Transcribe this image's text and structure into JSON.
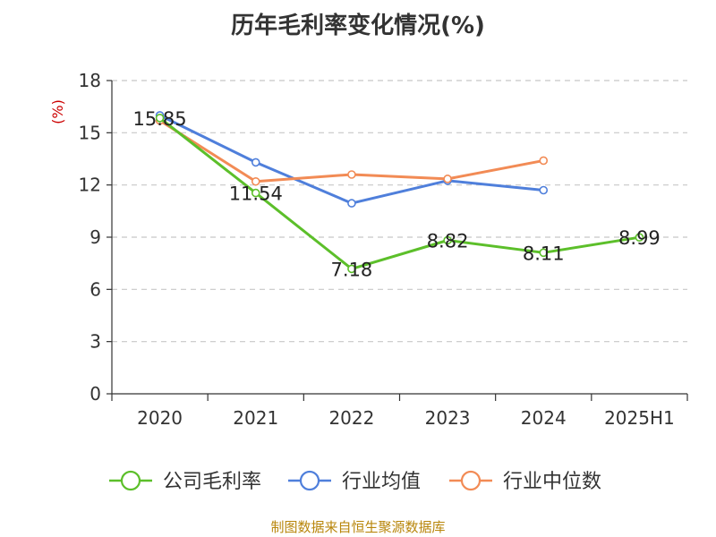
{
  "title": "历年毛利率变化情况(%)",
  "footer": "制图数据来自恒生聚源数据库",
  "chart_data": {
    "type": "line",
    "title": "历年毛利率变化情况(%)",
    "xlabel": "",
    "ylabel": "(%)",
    "categories": [
      "2020",
      "2021",
      "2022",
      "2023",
      "2024",
      "2025H1"
    ],
    "ylim": [
      0,
      18
    ],
    "yticks": [
      0,
      3,
      6,
      9,
      12,
      15,
      18
    ],
    "grid": "horizontal dashed",
    "legend_position": "bottom",
    "series": [
      {
        "name": "公司毛利率",
        "color": "#5cbf2a",
        "values": [
          15.85,
          11.54,
          7.18,
          8.82,
          8.11,
          8.99
        ],
        "labels": [
          "15.85",
          "11.54",
          "7.18",
          "8.82",
          "8.11",
          "8.99"
        ]
      },
      {
        "name": "行业均值",
        "color": "#4f7fdb",
        "values": [
          16.0,
          13.3,
          10.95,
          12.25,
          11.7,
          null
        ]
      },
      {
        "name": "行业中位数",
        "color": "#f28b55",
        "values": [
          15.7,
          12.2,
          12.6,
          12.35,
          13.4,
          null
        ]
      }
    ]
  }
}
